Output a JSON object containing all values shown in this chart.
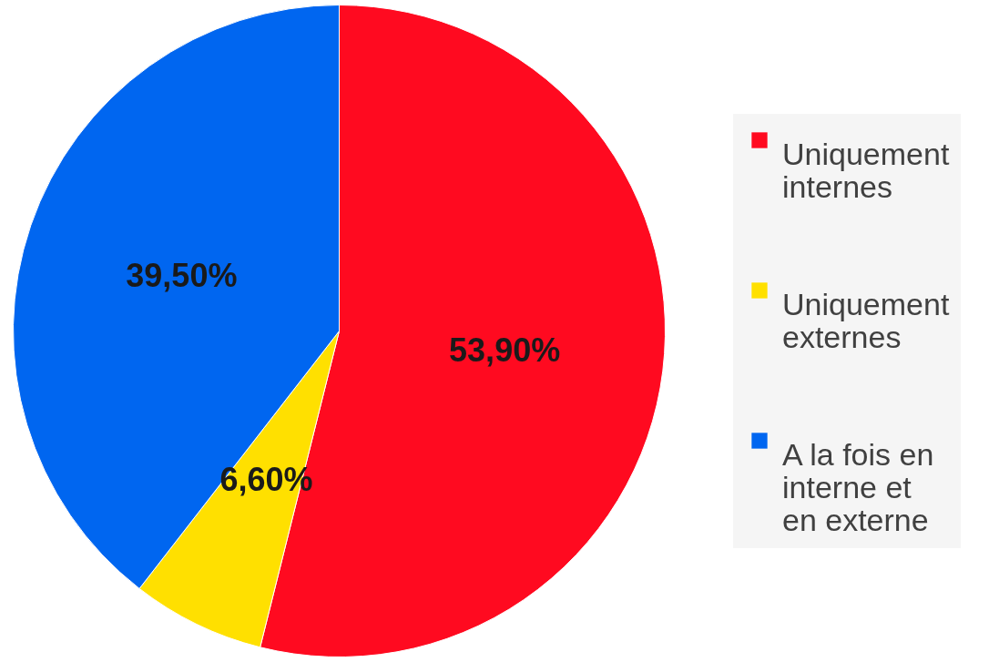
{
  "chart_data": {
    "type": "pie",
    "categories": [
      "Uniquement internes",
      "Uniquement externes",
      "A la fois en interne et en externe"
    ],
    "values": [
      53.9,
      6.6,
      39.5
    ],
    "colors": [
      "#ff0a20",
      "#ffe000",
      "#0066f0"
    ],
    "value_labels": [
      "53,90%",
      "6,60%",
      "39,50%"
    ],
    "legend": "right"
  }
}
